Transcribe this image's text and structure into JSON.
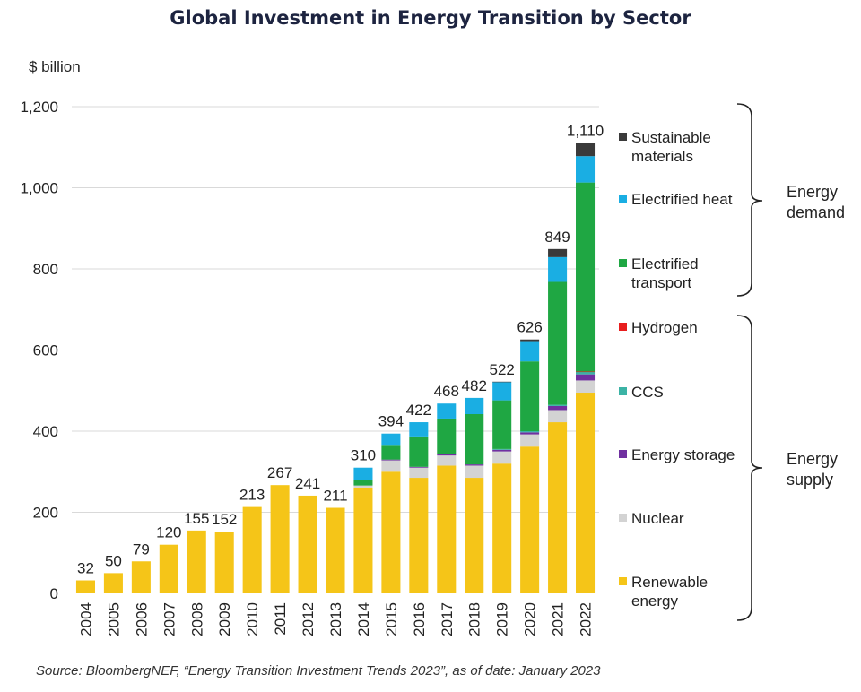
{
  "chart_data": {
    "type": "bar",
    "stacked": true,
    "title": "Global Investment in Energy Transition by Sector",
    "ylabel": "$ billion",
    "xlabel": "",
    "ylim": [
      0,
      1200
    ],
    "yticks": [
      0,
      200,
      400,
      600,
      800,
      1000,
      1200
    ],
    "ytick_labels": [
      "0",
      "200",
      "400",
      "600",
      "800",
      "1,000",
      "1,200"
    ],
    "grid": true,
    "categories": [
      "2004",
      "2005",
      "2006",
      "2007",
      "2008",
      "2009",
      "2010",
      "2011",
      "2012",
      "2013",
      "2014",
      "2015",
      "2016",
      "2017",
      "2018",
      "2019",
      "2020",
      "2021",
      "2022"
    ],
    "totals": [
      32,
      50,
      79,
      120,
      155,
      152,
      213,
      267,
      241,
      211,
      310,
      394,
      422,
      468,
      482,
      522,
      626,
      849,
      1110
    ],
    "total_labels": [
      "32",
      "50",
      "79",
      "120",
      "155",
      "152",
      "213",
      "267",
      "241",
      "211",
      "310",
      "394",
      "422",
      "468",
      "482",
      "522",
      "626",
      "849",
      "1,110"
    ],
    "series": [
      {
        "name": "Renewable energy",
        "color": "#f5c518",
        "values": [
          32,
          50,
          79,
          120,
          155,
          152,
          213,
          267,
          241,
          211,
          261,
          300,
          285,
          315,
          285,
          320,
          362,
          422,
          495
        ]
      },
      {
        "name": "Nuclear",
        "color": "#d3d3d3",
        "values": [
          0,
          0,
          0,
          0,
          0,
          0,
          0,
          0,
          0,
          0,
          5,
          28,
          25,
          25,
          30,
          30,
          30,
          30,
          30
        ]
      },
      {
        "name": "Energy storage",
        "color": "#7030a0",
        "values": [
          0,
          0,
          0,
          0,
          0,
          0,
          0,
          0,
          0,
          0,
          0,
          2,
          2,
          3,
          3,
          4,
          5,
          10,
          15
        ]
      },
      {
        "name": "CCS",
        "color": "#3bb3a5",
        "values": [
          0,
          0,
          0,
          0,
          0,
          0,
          0,
          0,
          0,
          0,
          0,
          0,
          0,
          0,
          0,
          2,
          3,
          3,
          6
        ]
      },
      {
        "name": "Hydrogen",
        "color": "#e81e1e",
        "values": [
          0,
          0,
          0,
          0,
          0,
          0,
          0,
          0,
          0,
          0,
          0,
          0,
          0,
          0,
          0,
          0,
          0,
          0,
          1
        ]
      },
      {
        "name": "Electrified transport",
        "color": "#1fa743",
        "values": [
          0,
          0,
          0,
          0,
          0,
          0,
          0,
          0,
          0,
          0,
          14,
          34,
          75,
          88,
          124,
          120,
          172,
          303,
          466
        ]
      },
      {
        "name": "Electrified heat",
        "color": "#1aaee3",
        "values": [
          0,
          0,
          0,
          0,
          0,
          0,
          0,
          0,
          0,
          0,
          30,
          30,
          35,
          37,
          40,
          45,
          50,
          61,
          65
        ]
      },
      {
        "name": "Sustainable materials",
        "color": "#3a3a3a",
        "values": [
          0,
          0,
          0,
          0,
          0,
          0,
          0,
          0,
          0,
          0,
          0,
          0,
          0,
          0,
          0,
          1,
          4,
          20,
          32
        ]
      }
    ],
    "legend": {
      "placement": "right",
      "items": [
        {
          "label": "Sustainable materials",
          "color": "#3a3a3a"
        },
        {
          "label": "Electrified heat",
          "color": "#1aaee3"
        },
        {
          "label": "Electrified transport",
          "color": "#1fa743"
        },
        {
          "label": "Hydrogen",
          "color": "#e81e1e"
        },
        {
          "label": "CCS",
          "color": "#3bb3a5"
        },
        {
          "label": "Energy storage",
          "color": "#7030a0"
        },
        {
          "label": "Nuclear",
          "color": "#d3d3d3"
        },
        {
          "label": "Renewable energy",
          "color": "#f5c518"
        }
      ],
      "groups": [
        {
          "label": "Energy demand",
          "members": [
            "Sustainable materials",
            "Electrified heat",
            "Electrified transport"
          ]
        },
        {
          "label": "Energy supply",
          "members": [
            "Hydrogen",
            "CCS",
            "Energy storage",
            "Nuclear",
            "Renewable energy"
          ]
        }
      ]
    },
    "source": "Source: BloombergNEF, “Energy Transition Investment Trends 2023”, as of date: January 2023"
  }
}
